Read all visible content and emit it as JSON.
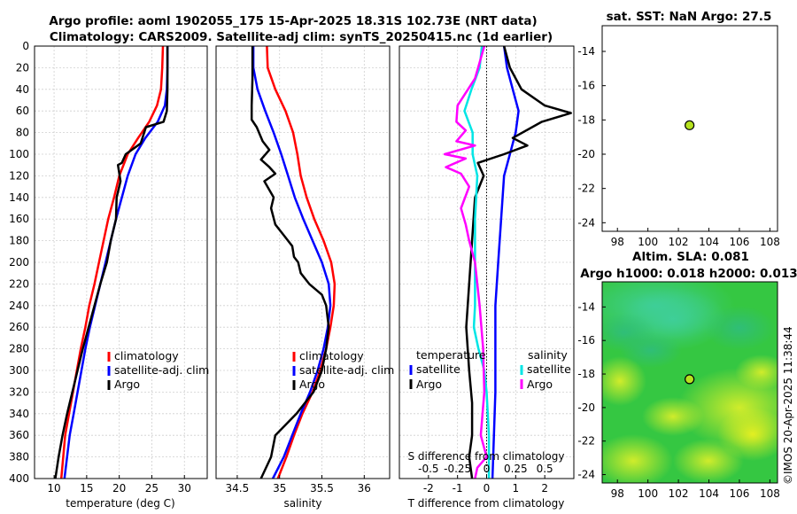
{
  "header": {
    "title_line1": "Argo profile: aoml 1902055_175 15-Apr-2025 18.31S 102.73E (NRT data)",
    "title_line2": "Climatology: CARS2009. Satellite-adj clim: synTS_20250415.nc (1d earlier)"
  },
  "watermark": "©IMOS 20-Apr-2025 11:38:44",
  "colors": {
    "climatology": "#ff0000",
    "satellite": "#0000ff",
    "argo": "#000000",
    "sal_satellite": "#00e5e5",
    "sal_argo": "#ff00ff",
    "dot": "#b6e21f"
  },
  "chart_data": [
    {
      "id": "temperature",
      "type": "line",
      "xlabel": "temperature (deg C)",
      "ylabel": "",
      "xlim": [
        7,
        33.5
      ],
      "ylim": [
        400,
        0
      ],
      "xticks": [
        10,
        15,
        20,
        25,
        30
      ],
      "yticks": [
        0,
        20,
        40,
        60,
        80,
        100,
        120,
        140,
        160,
        180,
        200,
        220,
        240,
        260,
        280,
        300,
        320,
        340,
        360,
        380,
        400
      ],
      "grid": true,
      "legend": [
        "climatology",
        "satellite-adj. clim",
        "Argo"
      ],
      "legend_position": "lower-right",
      "series": [
        {
          "name": "climatology",
          "color": "#ff0000",
          "x": [
            26.7,
            26.6,
            26.4,
            25.8,
            24.6,
            22.9,
            21.3,
            20.0,
            19.2,
            18.3,
            17.6,
            16.9,
            16.2,
            15.4,
            14.8,
            14.1,
            13.5,
            12.9,
            12.3,
            11.7,
            11.1
          ],
          "y": [
            0,
            20,
            40,
            55,
            70,
            85,
            100,
            120,
            140,
            160,
            180,
            200,
            220,
            240,
            260,
            280,
            300,
            320,
            340,
            360,
            400
          ]
        },
        {
          "name": "satellite-adj. clim",
          "color": "#0000ff",
          "x": [
            27.4,
            27.4,
            27.3,
            27.0,
            25.9,
            24.0,
            22.5,
            21.3,
            20.4,
            19.5,
            18.7,
            17.9,
            17.1,
            16.3,
            15.5,
            14.8,
            14.2,
            13.6,
            13.0,
            12.4,
            11.6
          ],
          "y": [
            0,
            20,
            40,
            55,
            70,
            85,
            100,
            120,
            140,
            160,
            180,
            200,
            220,
            240,
            260,
            280,
            300,
            320,
            340,
            360,
            400
          ]
        },
        {
          "name": "Argo",
          "color": "#000000",
          "x": [
            27.4,
            27.4,
            27.4,
            27.3,
            26.8,
            24.1,
            23.3,
            21.0,
            20.4,
            19.8,
            20.2,
            19.6,
            19.5,
            18.7,
            18.1,
            17.1,
            16.2,
            15.3,
            14.4,
            13.6,
            12.8,
            12.0,
            11.3,
            10.7,
            10.2
          ],
          "y": [
            0,
            20,
            40,
            60,
            70,
            75,
            90,
            100,
            108,
            110,
            125,
            140,
            160,
            180,
            200,
            220,
            240,
            260,
            280,
            300,
            320,
            340,
            360,
            380,
            400
          ]
        }
      ]
    },
    {
      "id": "salinity",
      "type": "line",
      "xlabel": "salinity",
      "ylabel": "",
      "xlim": [
        34.25,
        36.3
      ],
      "ylim": [
        400,
        0
      ],
      "xticks": [
        34.5,
        35,
        35.5,
        36
      ],
      "xticklabels": [
        "34.5",
        "35",
        "35.5",
        "36"
      ],
      "grid": true,
      "legend": [
        "climatology",
        "satellite-adj. clim",
        "Argo"
      ],
      "legend_position": "lower-right",
      "series": [
        {
          "name": "climatology",
          "color": "#ff0000",
          "x": [
            34.85,
            34.86,
            34.95,
            35.07,
            35.16,
            35.21,
            35.25,
            35.32,
            35.41,
            35.52,
            35.61,
            35.65,
            35.64,
            35.6,
            35.55,
            35.48,
            35.39,
            35.27,
            35.17,
            35.08,
            34.98
          ],
          "y": [
            0,
            20,
            40,
            60,
            80,
            100,
            120,
            140,
            160,
            180,
            200,
            220,
            240,
            260,
            280,
            300,
            320,
            340,
            360,
            380,
            400
          ]
        },
        {
          "name": "satellite-adj. clim",
          "color": "#0000ff",
          "x": [
            34.69,
            34.69,
            34.74,
            34.83,
            34.93,
            35.02,
            35.1,
            35.18,
            35.28,
            35.39,
            35.5,
            35.58,
            35.6,
            35.57,
            35.52,
            35.45,
            35.36,
            35.25,
            35.15,
            35.05,
            34.92
          ],
          "y": [
            0,
            20,
            40,
            60,
            80,
            100,
            120,
            140,
            160,
            180,
            200,
            220,
            240,
            260,
            280,
            300,
            320,
            340,
            360,
            380,
            400
          ]
        },
        {
          "name": "Argo",
          "color": "#000000",
          "x": [
            34.68,
            34.68,
            34.67,
            34.67,
            34.73,
            34.8,
            34.88,
            34.78,
            34.88,
            34.95,
            34.82,
            34.93,
            34.9,
            34.95,
            35.05,
            35.15,
            35.17,
            35.22,
            35.25,
            35.35,
            35.5,
            35.55,
            35.58,
            35.55,
            35.5,
            35.4,
            35.2,
            34.95,
            34.9,
            34.78
          ],
          "y": [
            0,
            30,
            55,
            68,
            75,
            88,
            96,
            105,
            112,
            118,
            125,
            140,
            150,
            165,
            175,
            185,
            195,
            200,
            210,
            220,
            230,
            240,
            260,
            280,
            300,
            320,
            340,
            360,
            380,
            400
          ]
        }
      ]
    },
    {
      "id": "difference",
      "type": "line",
      "xlabel": "T difference from climatology",
      "x2label": "S difference from climatology",
      "xlim": [
        -3,
        3
      ],
      "x2lim": [
        -0.75,
        0.75
      ],
      "ylim": [
        400,
        0
      ],
      "xticks": [
        -2,
        -1,
        0,
        1,
        2
      ],
      "x2ticks": [
        -0.5,
        -0.25,
        0,
        0.25,
        0.5
      ],
      "x2ticklabels": [
        "-0.5",
        "-0.25",
        "0",
        "0.25",
        "0.5"
      ],
      "grid": true,
      "legend_temperature_title": "temperature",
      "legend_salinity_title": "salinity",
      "legend_temperature": [
        "satellite",
        "Argo"
      ],
      "legend_salinity": [
        "satellite",
        "Argo"
      ],
      "series": [
        {
          "name": "T satellite",
          "color": "#0000ff",
          "axis": "T",
          "x": [
            0.6,
            0.7,
            0.9,
            1.1,
            1.0,
            0.8,
            0.6,
            0.5,
            0.4,
            0.3,
            0.3,
            0.3,
            0.2
          ],
          "y": [
            0,
            20,
            40,
            60,
            80,
            100,
            120,
            160,
            200,
            240,
            280,
            320,
            400
          ]
        },
        {
          "name": "T Argo",
          "color": "#000000",
          "axis": "T",
          "x": [
            0.6,
            0.8,
            1.2,
            2.0,
            2.9,
            1.9,
            0.9,
            1.4,
            0.6,
            -0.3,
            -0.1,
            -0.4,
            -0.5,
            -0.6,
            -0.7,
            -0.6,
            -0.5,
            -0.5,
            -0.6,
            -0.5
          ],
          "y": [
            0,
            20,
            40,
            55,
            62,
            70,
            85,
            92,
            100,
            108,
            120,
            140,
            180,
            220,
            260,
            300,
            330,
            360,
            380,
            400
          ]
        },
        {
          "name": "S satellite",
          "color": "#00e5e5",
          "axis": "S",
          "x": [
            -0.04,
            -0.06,
            -0.13,
            -0.19,
            -0.12,
            -0.12,
            -0.08,
            -0.1,
            -0.1,
            -0.1,
            -0.11,
            -0.07,
            -0.02,
            0.0,
            0.01,
            0.02,
            0.02,
            0.02
          ],
          "y": [
            0,
            20,
            40,
            60,
            80,
            100,
            120,
            160,
            200,
            240,
            260,
            280,
            300,
            320,
            340,
            360,
            380,
            400
          ]
        },
        {
          "name": "S Argo",
          "color": "#ff00ff",
          "axis": "S",
          "x": [
            -0.02,
            -0.1,
            -0.25,
            -0.26,
            -0.18,
            -0.26,
            -0.1,
            -0.36,
            -0.18,
            -0.35,
            -0.22,
            -0.15,
            -0.22,
            -0.18,
            -0.15,
            -0.1,
            -0.06,
            -0.03,
            -0.02,
            -0.05,
            0.0,
            -0.08,
            -0.1
          ],
          "y": [
            0,
            30,
            55,
            70,
            78,
            88,
            92,
            100,
            104,
            112,
            118,
            130,
            150,
            165,
            180,
            200,
            240,
            280,
            320,
            360,
            380,
            390,
            400
          ]
        }
      ]
    },
    {
      "id": "sst_map",
      "type": "scatter",
      "title": "sat. SST: NaN Argo: 27.5",
      "xlim": [
        97,
        108.5
      ],
      "ylim": [
        -24.5,
        -12.5
      ],
      "xticks": [
        98,
        100,
        102,
        104,
        106,
        108
      ],
      "yticks": [
        -14,
        -16,
        -18,
        -20,
        -22,
        -24
      ],
      "points": [
        {
          "x": 102.73,
          "y": -18.31
        }
      ]
    },
    {
      "id": "sla_map",
      "type": "heatmap",
      "title_line1": "Altim. SLA: 0.081",
      "title_line2": "Argo h1000: 0.018 h2000: 0.013",
      "xlim": [
        97,
        108.5
      ],
      "ylim": [
        -24.5,
        -12.5
      ],
      "xticks": [
        98,
        100,
        102,
        104,
        106,
        108
      ],
      "yticks": [
        -14,
        -16,
        -18,
        -20,
        -22,
        -24
      ],
      "points": [
        {
          "x": 102.73,
          "y": -18.31
        }
      ]
    }
  ]
}
